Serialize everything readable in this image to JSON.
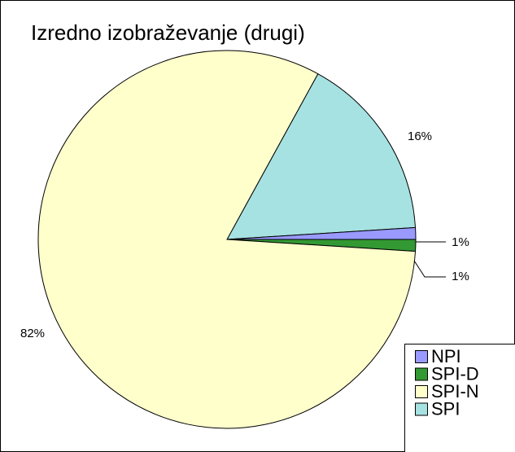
{
  "chart_data": {
    "type": "pie",
    "title": "Izredno izobraževanje (drugi)",
    "categories": [
      "NPI",
      "SPI-D",
      "SPI-N",
      "SPI"
    ],
    "values": [
      1,
      1,
      82,
      16
    ],
    "value_labels": [
      "1%",
      "1%",
      "82%",
      "16%"
    ],
    "colors": [
      "#9999ff",
      "#339933",
      "#ffffcc",
      "#a6e2e2"
    ],
    "legend": "bottom-right"
  }
}
